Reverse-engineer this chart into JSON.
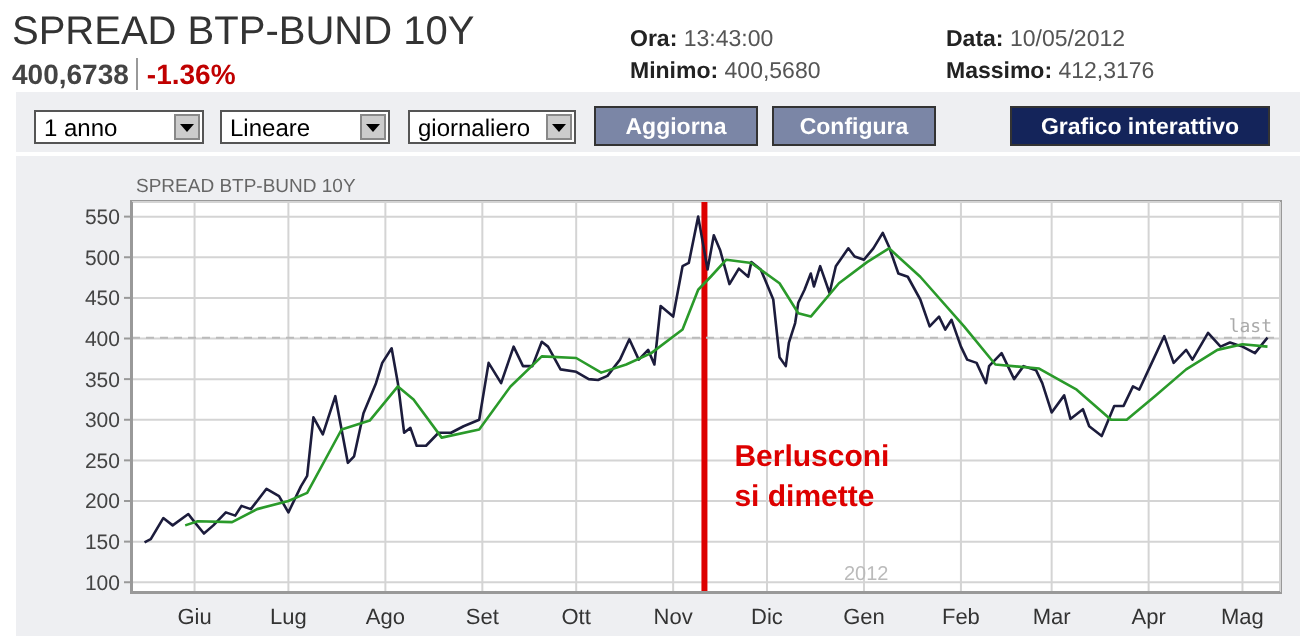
{
  "chart_data": {
    "type": "line",
    "title": "SPREAD BTP-BUND 10Y",
    "subtitle": "SPREAD BTP-BUND 10Y",
    "annotations": [
      "400,6738",
      "-1.36%",
      "Ora: 13:43:00",
      "Minimo: 400,5680",
      "Data: 10/05/2012",
      "Massimo: 412,3176",
      "1 anno",
      "Lineare",
      "giornaliero",
      "Aggiorna",
      "Configura",
      "Grafico interattivo",
      "2012"
    ],
    "xlim": [
      "2011-05-12",
      "2012-05-13"
    ],
    "xticks": [
      {
        "value": "2011-06-01",
        "label": "Giu"
      },
      {
        "value": "2011-07-01",
        "label": "Lug"
      },
      {
        "value": "2011-08-01",
        "label": "Ago"
      },
      {
        "value": "2011-09-01",
        "label": "Set"
      },
      {
        "value": "2011-10-01",
        "label": "Ott"
      },
      {
        "value": "2011-11-01",
        "label": "Nov"
      },
      {
        "value": "2011-12-01",
        "label": "Dic"
      },
      {
        "value": "2012-01-01",
        "label": "Gen"
      },
      {
        "value": "2012-02-01",
        "label": "Feb"
      },
      {
        "value": "2012-03-01",
        "label": "Mar"
      },
      {
        "value": "2012-04-01",
        "label": "Apr"
      },
      {
        "value": "2012-05-01",
        "label": "Mag"
      }
    ],
    "ylim": [
      88,
      568
    ],
    "yticks": [
      100,
      150,
      200,
      250,
      300,
      350,
      400,
      450,
      500,
      550
    ],
    "grid": true,
    "legend": false,
    "marker": "none",
    "line_style": "solid",
    "ref_lines": [
      {
        "axis": "x",
        "value": "2011-11-11",
        "label": "Berlusconi si dimette",
        "color": "#dd0000",
        "line_style": "solid"
      },
      {
        "axis": "y",
        "value": 401,
        "label": "last",
        "color": "#bbbbbb",
        "line_style": "dashed"
      }
    ],
    "series": [
      {
        "color": "#1c1c3c",
        "x": [
          "2011-05-16",
          "2011-05-18",
          "2011-05-22",
          "2011-05-25",
          "2011-05-30",
          "2011-06-01",
          "2011-06-04",
          "2011-06-07",
          "2011-06-11",
          "2011-06-14",
          "2011-06-16",
          "2011-06-19",
          "2011-06-24",
          "2011-06-28",
          "2011-07-01",
          "2011-07-05",
          "2011-07-07",
          "2011-07-09",
          "2011-07-12",
          "2011-07-16",
          "2011-07-20",
          "2011-07-22",
          "2011-07-25",
          "2011-07-29",
          "2011-07-31",
          "2011-08-03",
          "2011-08-05",
          "2011-08-07",
          "2011-08-09",
          "2011-08-11",
          "2011-08-14",
          "2011-08-18",
          "2011-08-22",
          "2011-08-26",
          "2011-08-31",
          "2011-09-03",
          "2011-09-07",
          "2011-09-11",
          "2011-09-14",
          "2011-09-17",
          "2011-09-20",
          "2011-09-22",
          "2011-09-26",
          "2011-10-01",
          "2011-10-05",
          "2011-10-08",
          "2011-10-11",
          "2011-10-15",
          "2011-10-18",
          "2011-10-21",
          "2011-10-24",
          "2011-10-26",
          "2011-10-28",
          "2011-11-01",
          "2011-11-04",
          "2011-11-06",
          "2011-11-09",
          "2011-11-12",
          "2011-11-14",
          "2011-11-16",
          "2011-11-19",
          "2011-11-22",
          "2011-11-25",
          "2011-11-26",
          "2011-11-29",
          "2011-12-03",
          "2011-12-05",
          "2011-12-07",
          "2011-12-08",
          "2011-12-10",
          "2011-12-11",
          "2011-12-13",
          "2011-12-15",
          "2011-12-16",
          "2011-12-18",
          "2011-12-21",
          "2011-12-23",
          "2011-12-27",
          "2011-12-29",
          "2012-01-01",
          "2012-01-04",
          "2012-01-07",
          "2012-01-09",
          "2012-01-12",
          "2012-01-15",
          "2012-01-19",
          "2012-01-22",
          "2012-01-25",
          "2012-01-27",
          "2012-01-29",
          "2012-02-01",
          "2012-02-03",
          "2012-02-06",
          "2012-02-09",
          "2012-02-10",
          "2012-02-14",
          "2012-02-18",
          "2012-02-21",
          "2012-02-25",
          "2012-02-27",
          "2012-03-01",
          "2012-03-05",
          "2012-03-07",
          "2012-03-11",
          "2012-03-13",
          "2012-03-17",
          "2012-03-21",
          "2012-03-24",
          "2012-03-27",
          "2012-03-29",
          "2012-04-02",
          "2012-04-06",
          "2012-04-09",
          "2012-04-13",
          "2012-04-15",
          "2012-04-20",
          "2012-04-24",
          "2012-04-27",
          "2012-05-01",
          "2012-05-05",
          "2012-05-09"
        ],
        "values": [
          149,
          153,
          179,
          170,
          184,
          174,
          160,
          170,
          186,
          182,
          194,
          190,
          215,
          206,
          186,
          218,
          231,
          303,
          282,
          329,
          247,
          255,
          308,
          345,
          370,
          388,
          345,
          284,
          290,
          268,
          268,
          284,
          284,
          292,
          300,
          370,
          345,
          390,
          366,
          366,
          396,
          390,
          362,
          359,
          350,
          349,
          354,
          374,
          399,
          374,
          386,
          368,
          440,
          427,
          489,
          493,
          550,
          485,
          527,
          509,
          467,
          486,
          476,
          494,
          485,
          448,
          377,
          366,
          395,
          419,
          444,
          460,
          480,
          464,
          489,
          456,
          489,
          511,
          501,
          497,
          511,
          530,
          513,
          480,
          476,
          448,
          415,
          427,
          411,
          423,
          390,
          374,
          370,
          345,
          366,
          382,
          350,
          366,
          361,
          345,
          309,
          330,
          301,
          313,
          292,
          280,
          317,
          317,
          341,
          337,
          370,
          403,
          370,
          386,
          374,
          407,
          390,
          395,
          390,
          382,
          401
        ]
      },
      {
        "color": "#2a9a2a",
        "x": [
          "2011-05-29",
          "2011-06-02",
          "2011-06-13",
          "2011-06-21",
          "2011-07-01",
          "2011-07-07",
          "2011-07-18",
          "2011-07-27",
          "2011-08-05",
          "2011-08-10",
          "2011-08-19",
          "2011-08-31",
          "2011-09-10",
          "2011-09-20",
          "2011-10-01",
          "2011-10-09",
          "2011-10-17",
          "2011-10-25",
          "2011-11-04",
          "2011-11-09",
          "2011-11-13",
          "2011-11-18",
          "2011-11-26",
          "2011-12-05",
          "2011-12-11",
          "2011-12-15",
          "2011-12-24",
          "2012-01-02",
          "2012-01-09",
          "2012-01-19",
          "2012-02-02",
          "2012-02-12",
          "2012-02-26",
          "2012-03-09",
          "2012-03-20",
          "2012-03-25",
          "2012-04-03",
          "2012-04-13",
          "2012-04-23",
          "2012-05-01",
          "2012-05-09"
        ],
        "values": [
          170,
          175,
          174,
          190,
          200,
          210,
          288,
          299,
          341,
          325,
          278,
          288,
          341,
          378,
          376,
          358,
          368,
          382,
          411,
          460,
          476,
          497,
          493,
          468,
          431,
          427,
          468,
          494,
          511,
          476,
          415,
          368,
          363,
          337,
          300,
          300,
          329,
          362,
          386,
          393,
          390
        ]
      }
    ]
  }
}
